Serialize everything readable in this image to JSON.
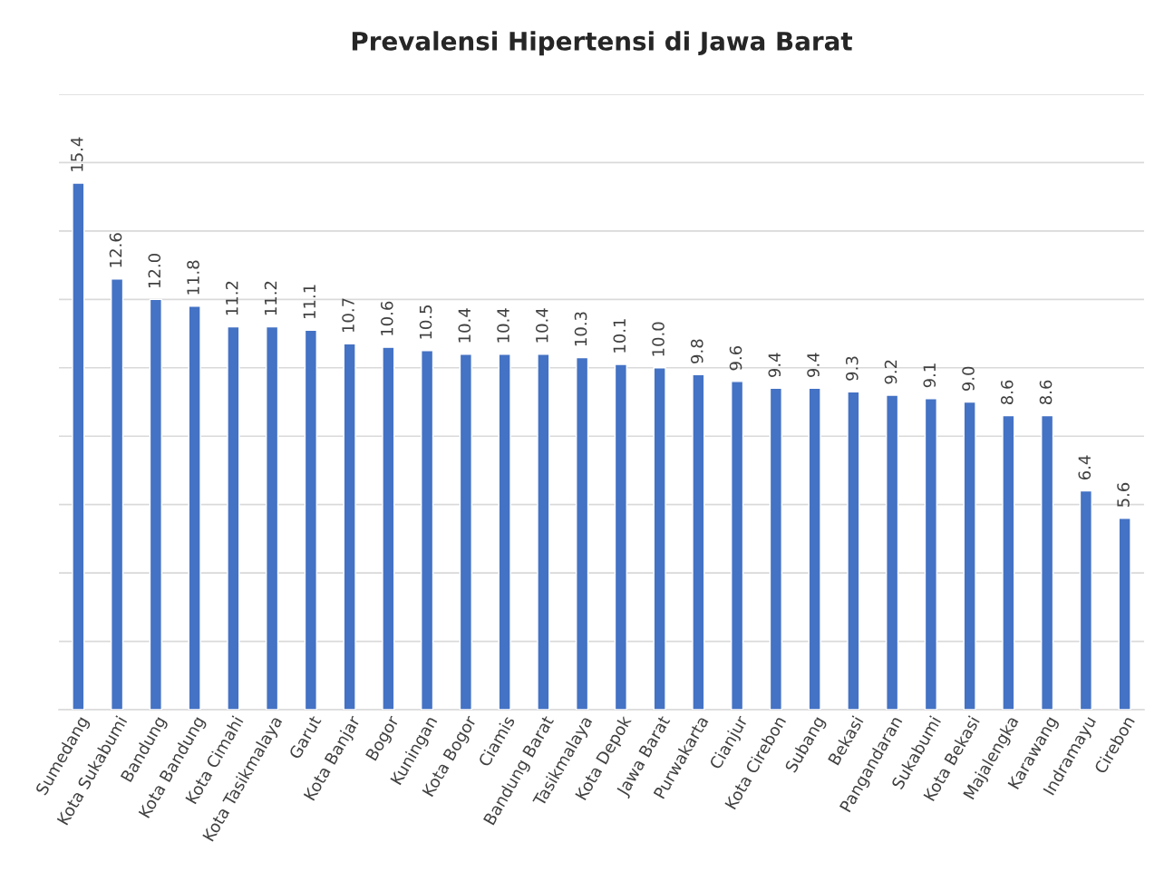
{
  "chart_data": {
    "type": "bar",
    "title": "Prevalensi Hipertensi di Jawa Barat",
    "categories": [
      "Sumedang",
      "Kota Sukabumi",
      "Bandung",
      "Kota Bandung",
      "Kota Cimahi",
      "Kota Tasikmalaya",
      "Garut",
      "Kota Banjar",
      "Bogor",
      "Kuningan",
      "Kota Bogor",
      "Ciamis",
      "Bandung Barat",
      "Tasikmalaya",
      "Kota Depok",
      "Jawa Barat",
      "Purwakarta",
      "Cianjur",
      "Kota Cirebon",
      "Subang",
      "Bekasi",
      "Pangandaran",
      "Sukabumi",
      "Kota Bekasi",
      "Majalengka",
      "Karawang",
      "Indramayu",
      "Cirebon"
    ],
    "values": [
      15.4,
      12.6,
      12.0,
      11.8,
      11.2,
      11.2,
      11.1,
      10.7,
      10.6,
      10.5,
      10.4,
      10.4,
      10.4,
      10.3,
      10.1,
      10.0,
      9.8,
      9.6,
      9.4,
      9.4,
      9.3,
      9.2,
      9.1,
      9.0,
      8.6,
      8.6,
      6.4,
      5.6
    ],
    "color": "#4472c4",
    "ylim": [
      0,
      18
    ],
    "yticks": [
      {
        "value": 0,
        "label": null
      },
      {
        "value": 2,
        "label": null
      },
      {
        "value": 4,
        "label": null
      },
      {
        "value": 6,
        "label": null
      },
      {
        "value": 8,
        "label": null
      },
      {
        "value": 10,
        "label": null
      },
      {
        "value": 12,
        "label": null
      },
      {
        "value": 14,
        "label": null
      },
      {
        "value": 16,
        "label": null
      },
      {
        "value": 18,
        "label": null
      }
    ],
    "value_labels": [
      "15.4",
      "12.6",
      "12.0",
      "11.8",
      "11.2",
      "11.2",
      "11.1",
      "10.7",
      "10.6",
      "10.5",
      "10.4",
      "10.4",
      "10.4",
      "10.3",
      "10.1",
      "10.0",
      "9.8",
      "9.6",
      "9.4",
      "9.4",
      "9.3",
      "9.2",
      "9.1",
      "9.0",
      "8.6",
      "8.6",
      "6.4",
      "5.6"
    ],
    "grid": "y",
    "tick_labels": "x"
  }
}
